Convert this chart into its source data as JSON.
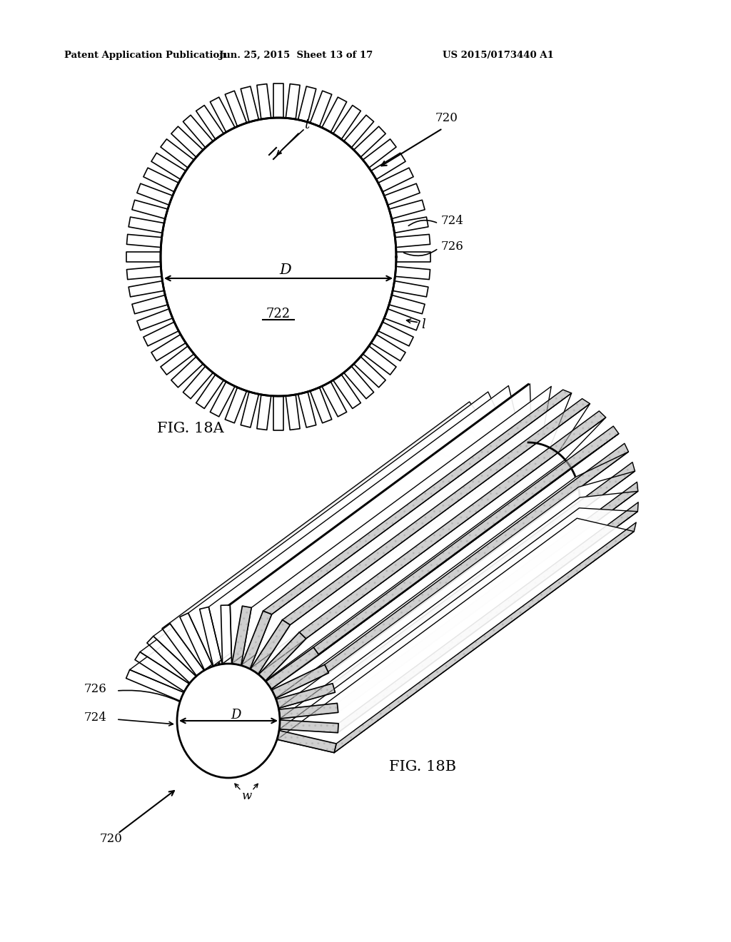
{
  "bg_color": "#ffffff",
  "line_color": "#000000",
  "header_left": "Patent Application Publication",
  "header_mid": "Jun. 25, 2015  Sheet 13 of 17",
  "header_right": "US 2015/0173440 A1",
  "fig18a_label": "FIG. 18A",
  "fig18b_label": "FIG. 18B",
  "shade_color": "#d0d0d0",
  "dot_color": "#b0b0b0"
}
